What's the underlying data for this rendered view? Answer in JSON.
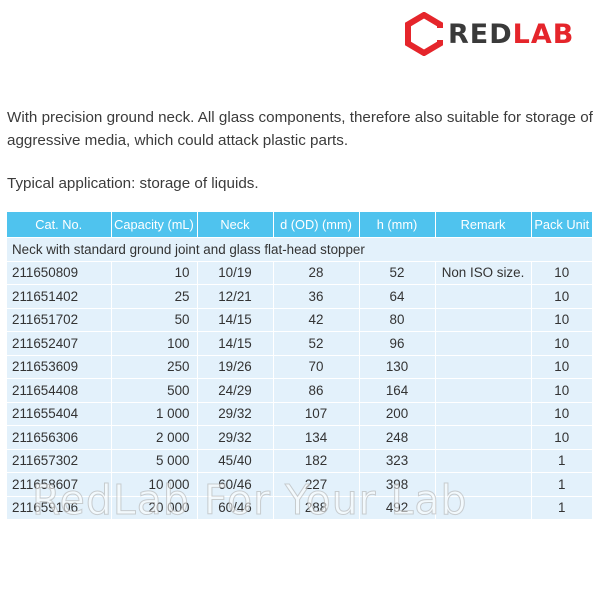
{
  "logo": {
    "part1": "RED",
    "part2": "LAB",
    "accent_color": "#e5252b"
  },
  "description": "With precision ground neck. All glass components, therefore also suitable for storage of aggressive media, which could attack plastic parts.",
  "application": "Typical application: storage of liquids.",
  "table": {
    "headers": [
      "Cat. No.",
      "Capacity (mL)",
      "Neck",
      "d (OD) (mm)",
      "h (mm)",
      "Remark",
      "Pack Unit"
    ],
    "group_label": "Neck with standard ground joint and glass flat-head stopper",
    "rows": [
      [
        "211650809",
        "10",
        "10/19",
        "28",
        "52",
        "Non ISO size.",
        "10"
      ],
      [
        "211651402",
        "25",
        "12/21",
        "36",
        "64",
        "",
        "10"
      ],
      [
        "211651702",
        "50",
        "14/15",
        "42",
        "80",
        "",
        "10"
      ],
      [
        "211652407",
        "100",
        "14/15",
        "52",
        "96",
        "",
        "10"
      ],
      [
        "211653609",
        "250",
        "19/26",
        "70",
        "130",
        "",
        "10"
      ],
      [
        "211654408",
        "500",
        "24/29",
        "86",
        "164",
        "",
        "10"
      ],
      [
        "211655404",
        "1 000",
        "29/32",
        "107",
        "200",
        "",
        "10"
      ],
      [
        "211656306",
        "2 000",
        "29/32",
        "134",
        "248",
        "",
        "10"
      ],
      [
        "211657302",
        "5 000",
        "45/40",
        "182",
        "323",
        "",
        "1"
      ],
      [
        "211658607",
        "10 000",
        "60/46",
        "227",
        "398",
        "",
        "1"
      ],
      [
        "211659106",
        "20 000",
        "60/46",
        "288",
        "492",
        "",
        "1"
      ]
    ]
  },
  "watermark": "RedLab For Your Lab",
  "colors": {
    "header_bg": "#4fc3ee",
    "row_bg": "#e3f1fb",
    "text": "#3a3a3a"
  }
}
